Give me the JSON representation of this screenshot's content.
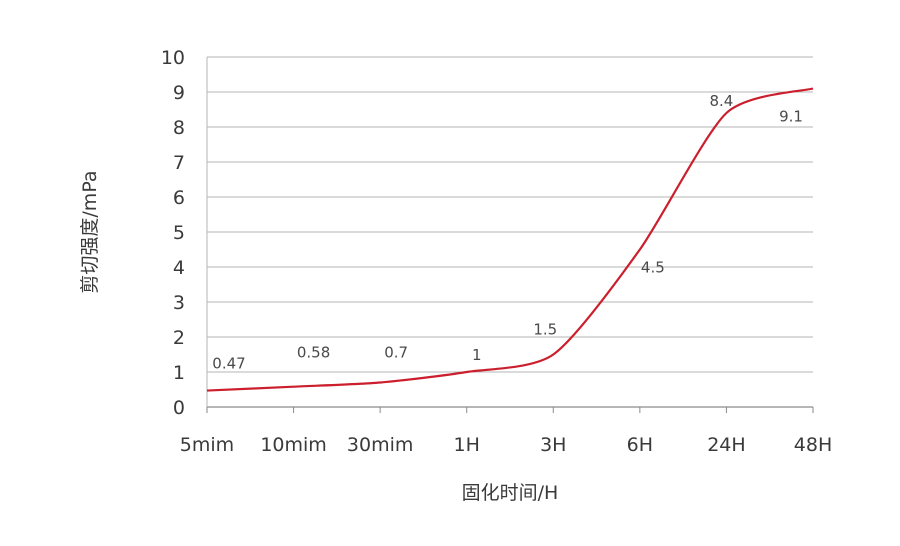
{
  "chart_data": {
    "type": "line",
    "title": "",
    "xlabel": "固化时间/H",
    "ylabel": "剪切强度/mPa",
    "categories": [
      "5mim",
      "10mim",
      "30mim",
      "1H",
      "3H",
      "6H",
      "24H",
      "48H"
    ],
    "series": [
      {
        "values": [
          0.47,
          0.58,
          0.7,
          1,
          1.5,
          4.5,
          8.4,
          9.1
        ],
        "data_labels": [
          "0.47",
          "0.58",
          "0.7",
          "1",
          "1.5",
          "4.5",
          "8.4",
          "9.1"
        ],
        "color": "#cc1f2d"
      }
    ],
    "ylim": [
      0,
      10
    ],
    "yticks": [
      0,
      1,
      2,
      3,
      4,
      5,
      6,
      7,
      8,
      9,
      10
    ],
    "grid": true,
    "legend": "none",
    "smooth": true
  }
}
